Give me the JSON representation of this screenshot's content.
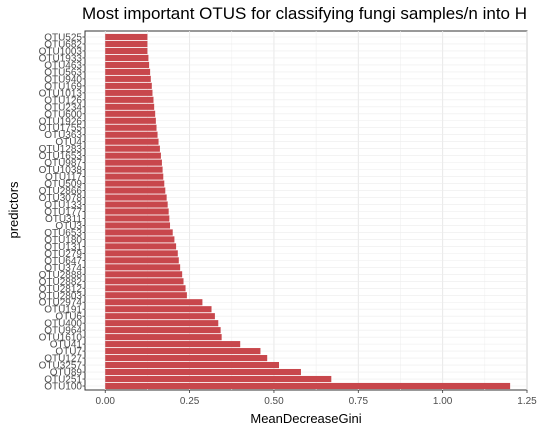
{
  "chart_data": {
    "type": "bar",
    "orientation": "horizontal",
    "title": "Most important OTUS for classifying fungi samples/n into H",
    "xlabel": "MeanDecreaseGini",
    "ylabel": "predictors",
    "xlim": [
      -0.06,
      1.25
    ],
    "xticks": [
      0.0,
      0.25,
      0.5,
      0.75,
      1.0,
      1.25
    ],
    "xtick_labels": [
      "0.00",
      "0.25",
      "0.50",
      "0.75",
      "1.00",
      "1.25"
    ],
    "bar_color": "#c8474c",
    "grid": true,
    "categories": [
      "OTU525",
      "OTU682",
      "OTU1003",
      "OTU1933",
      "OTU463",
      "OTU563",
      "OTU940",
      "OTU169",
      "OTU1013",
      "OTU126",
      "OTU234",
      "OTU600",
      "OTU1926",
      "OTU1755",
      "OTU363",
      "OTU4",
      "OTU1283",
      "OTU1653",
      "OTU987",
      "OTU1038",
      "OTU117",
      "OTU509",
      "OTU2866",
      "OTU3078",
      "OTU133",
      "OTU177",
      "OTU311",
      "OTU3",
      "OTU653",
      "OTU180",
      "OTU131",
      "OTU279",
      "OTU647",
      "OTU374",
      "OTU2888",
      "OTU2882",
      "OTU2812",
      "OTU2803",
      "OTU2974",
      "OTU191",
      "OTU6",
      "OTU400",
      "OTU964",
      "OTU1610",
      "OTU41",
      "OTU7",
      "OTU127",
      "OTU3257",
      "OTU89",
      "OTU251",
      "OTU100"
    ],
    "values": [
      0.125,
      0.125,
      0.125,
      0.128,
      0.13,
      0.133,
      0.135,
      0.138,
      0.14,
      0.143,
      0.145,
      0.148,
      0.15,
      0.152,
      0.155,
      0.158,
      0.162,
      0.165,
      0.168,
      0.17,
      0.172,
      0.175,
      0.178,
      0.182,
      0.185,
      0.188,
      0.19,
      0.192,
      0.2,
      0.205,
      0.21,
      0.215,
      0.218,
      0.222,
      0.228,
      0.232,
      0.238,
      0.242,
      0.288,
      0.315,
      0.325,
      0.335,
      0.342,
      0.345,
      0.4,
      0.46,
      0.48,
      0.515,
      0.58,
      0.67,
      1.2
    ]
  }
}
